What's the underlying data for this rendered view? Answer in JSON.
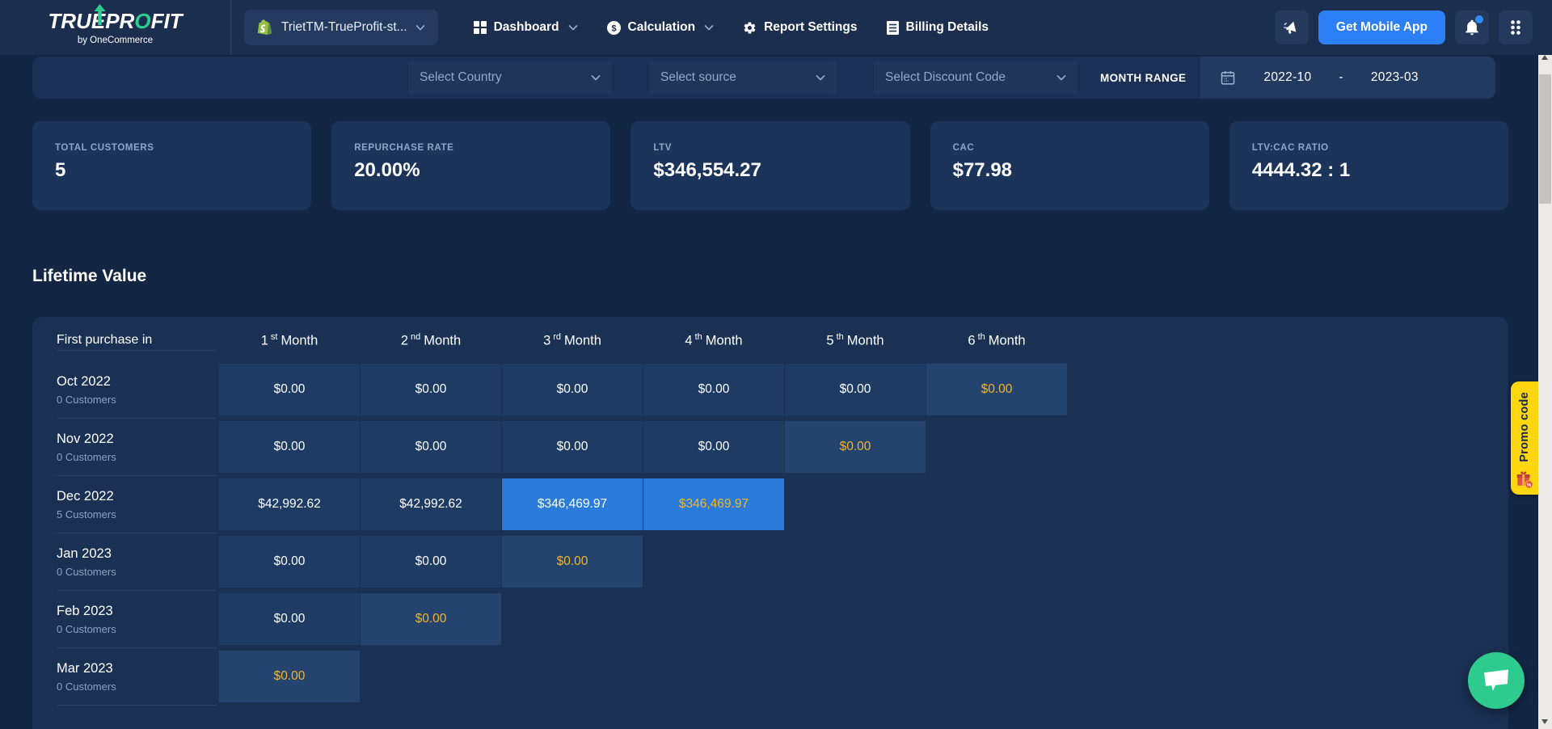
{
  "navbar": {
    "logo": {
      "text": "TRUEPROFIT",
      "subtitle": "by OneCommerce"
    },
    "store_selector": {
      "label": "TrietTM-TrueProfit-st...",
      "icon": "shopify-bag-icon"
    },
    "items": [
      {
        "label": "Dashboard",
        "icon": "dashboard-grid",
        "has_dropdown": true
      },
      {
        "label": "Calculation",
        "icon": "dollar-circle",
        "has_dropdown": true
      },
      {
        "label": "Report Settings",
        "icon": "gear",
        "has_dropdown": false
      },
      {
        "label": "Billing Details",
        "icon": "billing-doc",
        "has_dropdown": false
      }
    ],
    "get_mobile_app_label": "Get Mobile App"
  },
  "filters": {
    "country_placeholder": "Select Country",
    "source_placeholder": "Select source",
    "discount_placeholder": "Select Discount Code",
    "month_range_label": "MONTH RANGE",
    "month_from": "2022-10",
    "month_separator": "-",
    "month_to": "2023-03"
  },
  "kpis": [
    {
      "label": "TOTAL CUSTOMERS",
      "value": "5"
    },
    {
      "label": "REPURCHASE RATE",
      "value": "20.00%"
    },
    {
      "label": "LTV",
      "value": "$346,554.27"
    },
    {
      "label": "CAC",
      "value": "$77.98"
    },
    {
      "label": "LTV:CAC RATIO",
      "value": "4444.32 : 1"
    }
  ],
  "section_title": "Lifetime Value",
  "table": {
    "first_col_header": "First purchase in",
    "month_headers": [
      {
        "num": "1",
        "suffix": "st",
        "word": "Month"
      },
      {
        "num": "2",
        "suffix": "nd",
        "word": "Month"
      },
      {
        "num": "3",
        "suffix": "rd",
        "word": "Month"
      },
      {
        "num": "4",
        "suffix": "th",
        "word": "Month"
      },
      {
        "num": "5",
        "suffix": "th",
        "word": "Month"
      },
      {
        "num": "6",
        "suffix": "th",
        "word": "Month"
      }
    ],
    "rows": [
      {
        "month": "Oct 2022",
        "customers": "0 Customers",
        "cells": [
          {
            "value": "$0.00",
            "style": "default"
          },
          {
            "value": "$0.00",
            "style": "default"
          },
          {
            "value": "$0.00",
            "style": "default"
          },
          {
            "value": "$0.00",
            "style": "default"
          },
          {
            "value": "$0.00",
            "style": "default"
          },
          {
            "value": "$0.00",
            "style": "latest"
          }
        ]
      },
      {
        "month": "Nov 2022",
        "customers": "0 Customers",
        "cells": [
          {
            "value": "$0.00",
            "style": "default"
          },
          {
            "value": "$0.00",
            "style": "default"
          },
          {
            "value": "$0.00",
            "style": "default"
          },
          {
            "value": "$0.00",
            "style": "default"
          },
          {
            "value": "$0.00",
            "style": "latest"
          }
        ]
      },
      {
        "month": "Dec 2022",
        "customers": "5 Customers",
        "cells": [
          {
            "value": "$42,992.62",
            "style": "default"
          },
          {
            "value": "$42,992.62",
            "style": "default"
          },
          {
            "value": "$346,469.97",
            "style": "highlight"
          },
          {
            "value": "$346,469.97",
            "style": "highlight_latest"
          }
        ]
      },
      {
        "month": "Jan 2023",
        "customers": "0 Customers",
        "cells": [
          {
            "value": "$0.00",
            "style": "default"
          },
          {
            "value": "$0.00",
            "style": "default"
          },
          {
            "value": "$0.00",
            "style": "latest"
          }
        ]
      },
      {
        "month": "Feb 2023",
        "customers": "0 Customers",
        "cells": [
          {
            "value": "$0.00",
            "style": "default"
          },
          {
            "value": "$0.00",
            "style": "latest"
          }
        ]
      },
      {
        "month": "Mar 2023",
        "customers": "0 Customers",
        "cells": [
          {
            "value": "$0.00",
            "style": "latest"
          }
        ]
      }
    ]
  },
  "promo_tab": {
    "label": "Promo code",
    "icon": "gift-icon"
  },
  "colors": {
    "page_bg": "#132643",
    "navbar_bg": "#1c2e4e",
    "panel_bg": "#1a3055",
    "card_bg": "#1c3459",
    "table_bg": "#1a3154",
    "cell_bg": "#1e3b64",
    "cell_latest_bg": "#24436e",
    "hl_blue": "#2b7cda",
    "amber": "#f2b62a",
    "accent_blue": "#2d7ff5",
    "badge_blue": "#2f8df5",
    "promo_yellow": "#ffd60f",
    "chat_green": "#2fcb8e",
    "logo_green": "#2ecc8e",
    "shopify_green": "#95bf47",
    "muted_text": "#8da6c9"
  }
}
